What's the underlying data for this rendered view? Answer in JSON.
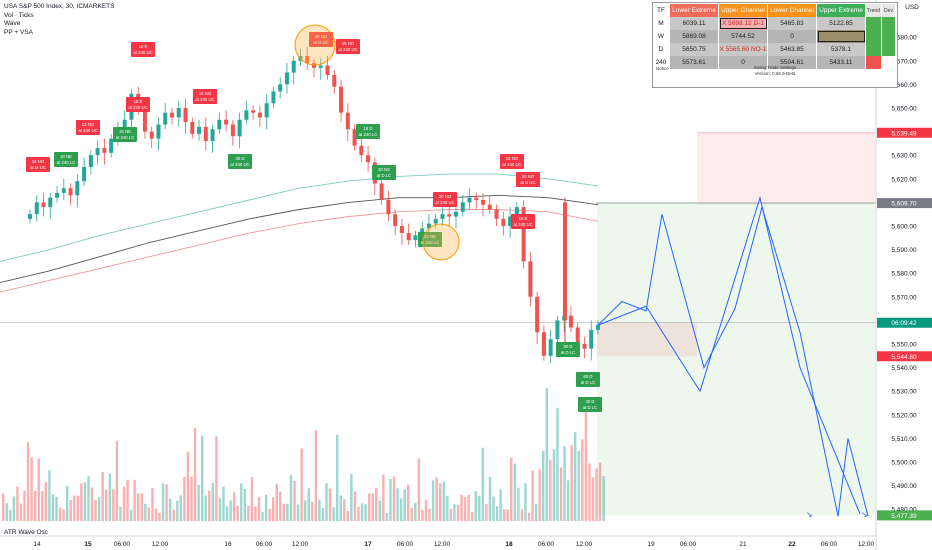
{
  "legend": {
    "title": "USA S&P 500 Index, 30, ICMARKETS",
    "lines": [
      "Vol · Ticks",
      "Wave",
      "PP + VSA"
    ]
  },
  "osc_label": "ATR Wave Osc",
  "price_axis": {
    "unit": "USD",
    "ticks": [
      "5,680.00",
      "5,670.00",
      "5,660.00",
      "5,650.00",
      "5,640.00",
      "5,630.00",
      "5,620.00",
      "5,610.00",
      "5,600.00",
      "5,590.00",
      "5,580.00",
      "5,570.00",
      "5,560.00",
      "5,550.00",
      "5,540.00",
      "5,530.00",
      "5,520.00",
      "5,510.00",
      "5,500.00",
      "5,490.00",
      "5,480.00"
    ],
    "price_labels": [
      {
        "text": "5,639.49",
        "price": 5639.49,
        "color": "#f23645"
      },
      {
        "text": "5,609.70",
        "price": 5609.7,
        "color": "#787b86"
      },
      {
        "text": "06:09:42",
        "price": 5559.0,
        "color": "#089981"
      },
      {
        "text": "5,544.80",
        "price": 5544.8,
        "color": "#f23645"
      },
      {
        "text": "5,477.39",
        "price": 5477.39,
        "color": "#4caf50"
      }
    ]
  },
  "time_axis": {
    "ticks": [
      "14",
      "15",
      "06:00",
      "12:00",
      "16",
      "06:00",
      "12:00",
      "17",
      "06:00",
      "12:00",
      "18",
      "06:00",
      "12:00",
      "19",
      "06:00",
      "21",
      "22",
      "06:00",
      "12:00"
    ],
    "bold_ticks": [
      "15",
      "17",
      "18",
      "22"
    ]
  },
  "table": {
    "headers": [
      "TF",
      "Lower Extreme",
      "Upper Channel",
      "Lower Channel",
      "Upper Extreme",
      "Trend",
      "Dev"
    ],
    "rows": [
      {
        "tf": "M",
        "values": [
          "6039.11",
          "X 5698.12 D-1",
          "5465.83",
          "5122.85"
        ]
      },
      {
        "tf": "W",
        "values": [
          "5869.08",
          "5744.52",
          "0",
          ""
        ]
      },
      {
        "tf": "D",
        "values": [
          "5650.75",
          "X 5565.60 NO-1",
          "5463.85",
          "5378.1"
        ]
      },
      {
        "tf": "240",
        "values": [
          "5573.61",
          "0",
          "5504.61",
          "5433.11"
        ]
      }
    ],
    "notice_label": "Notice",
    "notice_lines": [
      "Swing Trade Settings",
      "Version: 0.66.9-Beta"
    ]
  },
  "chart_data": {
    "type": "candlestick",
    "symbol": "USA S&P 500 Index",
    "timeframe": "30",
    "exchange": "ICMARKETS",
    "ylim": [
      5475,
      5686
    ],
    "current_price": 5559.0,
    "ohlc_close_path": [
      5605,
      5610,
      5608,
      5612,
      5614,
      5616,
      5613,
      5619,
      5625,
      5630,
      5633,
      5631,
      5637,
      5641,
      5645,
      5656,
      5649,
      5640,
      5637,
      5643,
      5648,
      5646,
      5650,
      5644,
      5639,
      5642,
      5636,
      5641,
      5645,
      5643,
      5638,
      5645,
      5649,
      5648,
      5646,
      5652,
      5657,
      5660,
      5665,
      5670,
      5672,
      5669,
      5667,
      5668,
      5664,
      5659,
      5648,
      5641,
      5634,
      5630,
      5627,
      5618,
      5611,
      5605,
      5600,
      5597,
      5594,
      5596,
      5599,
      5601,
      5603,
      5605,
      5604,
      5606,
      5610,
      5612,
      5611,
      5609,
      5607,
      5603,
      5600,
      5604,
      5608,
      5585,
      5570,
      5555,
      5545,
      5552,
      5560,
      5562,
      5557,
      5550,
      5548,
      5556,
      5558
    ],
    "overlays": [
      {
        "type": "moving_average",
        "color": "#80cbc4",
        "values": [
          5585,
          5590,
          5596,
          5601,
          5606,
          5611,
          5616,
          5619,
          5621,
          5622,
          5622,
          5620,
          5617
        ]
      },
      {
        "type": "moving_average",
        "color": "#555555",
        "values": [
          5576,
          5581,
          5587,
          5593,
          5598,
          5603,
          5607,
          5610,
          5612,
          5612,
          5613,
          5612,
          5609
        ]
      },
      {
        "type": "moving_average",
        "color": "#ef9a9a",
        "values": [
          5572,
          5577,
          5582,
          5587,
          5592,
          5597,
          5601,
          5604,
          5606,
          5607,
          5607,
          5606,
          5602
        ]
      }
    ],
    "zones": [
      {
        "kind": "stop",
        "color": "#f23645",
        "from_price": 5609.7,
        "to_price": 5639.49
      },
      {
        "kind": "target",
        "color": "#4caf50",
        "from_price": 5477.39,
        "to_price": 5609.7
      },
      {
        "kind": "stop",
        "color": "#f23645",
        "from_price": 5544.8,
        "to_price": 5559.0
      }
    ],
    "projection_path_prices": [
      5558,
      5568,
      5564,
      5605,
      5540,
      5565,
      5608,
      5555,
      5477,
      5510,
      5477
    ],
    "annotations": [
      {
        "text": "16 NO\nat M UC",
        "color": "red"
      },
      {
        "text": "18 NE\nat 240 LC",
        "color": "green"
      },
      {
        "text": "15 NE\nat 240 LC",
        "color": "green"
      },
      {
        "text": "13 NO\nat 240 UC",
        "color": "red"
      },
      {
        "text": "16 E\nat 240 UC",
        "color": "red"
      },
      {
        "text": "15 E\nat 240 UC",
        "color": "red"
      },
      {
        "text": "16 NO\nat 240 UC",
        "color": "red"
      },
      {
        "text": "30 D\nat 240 UC",
        "color": "green"
      },
      {
        "text": "40 NO\nat D UC",
        "color": "red"
      },
      {
        "text": "15 NO\nat 240 UC",
        "color": "red"
      },
      {
        "text": "18 D\nat 240 LC",
        "color": "green"
      },
      {
        "text": "30 NS\nat D LC",
        "color": "green"
      },
      {
        "text": "20 NO\nat 240 UC",
        "color": "red"
      },
      {
        "text": "25 NE\nat 240 LC",
        "color": "green"
      },
      {
        "text": "15 NO\nat 240 UC",
        "color": "red"
      },
      {
        "text": "18 E\nat 240 UC",
        "color": "red"
      },
      {
        "text": "20 NO\nat D UC",
        "color": "red"
      },
      {
        "text": "80 D\nat D LC",
        "color": "green"
      },
      {
        "text": "60 D\nat D LC",
        "color": "green"
      },
      {
        "text": "30 D\nat D LC",
        "color": "green"
      }
    ],
    "volume": "relative tick volume histogram (red/green)"
  }
}
